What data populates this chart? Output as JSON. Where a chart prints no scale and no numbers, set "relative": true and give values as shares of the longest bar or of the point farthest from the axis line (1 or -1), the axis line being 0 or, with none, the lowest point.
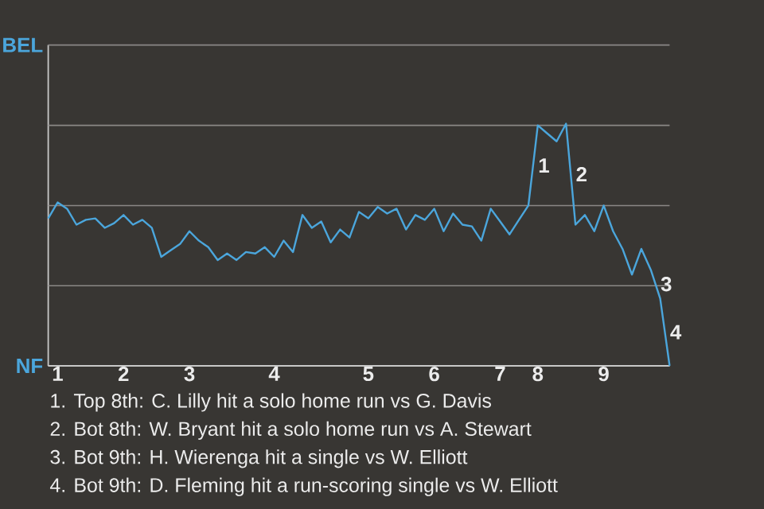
{
  "chart_data": {
    "type": "line",
    "relative": true,
    "categories": [
      null,
      "1",
      null,
      null,
      null,
      null,
      null,
      null,
      "2",
      null,
      null,
      null,
      null,
      null,
      null,
      "3",
      null,
      null,
      null,
      null,
      null,
      null,
      null,
      null,
      "4",
      null,
      null,
      null,
      null,
      null,
      null,
      null,
      null,
      null,
      "5",
      null,
      null,
      null,
      null,
      null,
      null,
      "6",
      null,
      null,
      null,
      null,
      null,
      null,
      "7",
      null,
      null,
      null,
      "8",
      null,
      null,
      null,
      null,
      null,
      null,
      "9",
      null,
      null,
      null,
      null,
      null,
      null,
      null
    ],
    "series": [
      {
        "color": "#4ba6dc",
        "values": [
          0.609,
          0.675,
          0.649,
          0.583,
          0.603,
          0.609,
          0.57,
          0.589,
          0.623,
          0.583,
          0.603,
          0.57,
          0.45,
          0.477,
          0.503,
          0.556,
          0.517,
          0.49,
          0.437,
          0.464,
          0.437,
          0.47,
          0.464,
          0.49,
          0.45,
          0.517,
          0.47,
          0.623,
          0.57,
          0.596,
          0.51,
          0.563,
          0.53,
          0.636,
          0.609,
          0.656,
          0.629,
          0.649,
          0.563,
          0.623,
          0.603,
          0.649,
          0.556,
          0.629,
          0.583,
          0.576,
          0.517,
          0.649,
          0.596,
          0.543,
          0.603,
          0.662,
          0.993,
          0.96,
          0.927,
          1,
          0.583,
          0.623,
          0.556,
          0.662,
          0.556,
          0.483,
          0.377,
          0.483,
          0.397,
          0.278,
          0
        ]
      }
    ],
    "ref_lines": [
      {
        "axis": "y",
        "value": 0,
        "label": "NF",
        "color": "#c8c8c8"
      },
      {
        "axis": "y",
        "value": 0.331,
        "label": null,
        "color": "#8a8886"
      },
      {
        "axis": "y",
        "value": 0.662,
        "label": null,
        "color": "#8a8886"
      },
      {
        "axis": "y",
        "value": 0.993,
        "label": null,
        "color": "#8a8886"
      },
      {
        "axis": "y",
        "value": 1.325,
        "label": "BEL",
        "color": "#8a8886"
      }
    ],
    "annotations": [
      {
        "text": "1",
        "y": 0.993
      },
      {
        "text": "2",
        "y": 0.583
      },
      {
        "text": "3",
        "y": 0.278
      },
      {
        "text": "4",
        "y": 0
      },
      "1. Top 8th: C. Lilly hit a solo home run vs G. Davis",
      "2. Bot 8th: W. Bryant hit a solo home run vs A. Stewart",
      "3. Bot 9th: H. Wierenga hit a single vs W. Elliott",
      "4. Bot 9th: D. Fleming hit a run-scoring single vs W. Elliott"
    ]
  }
}
